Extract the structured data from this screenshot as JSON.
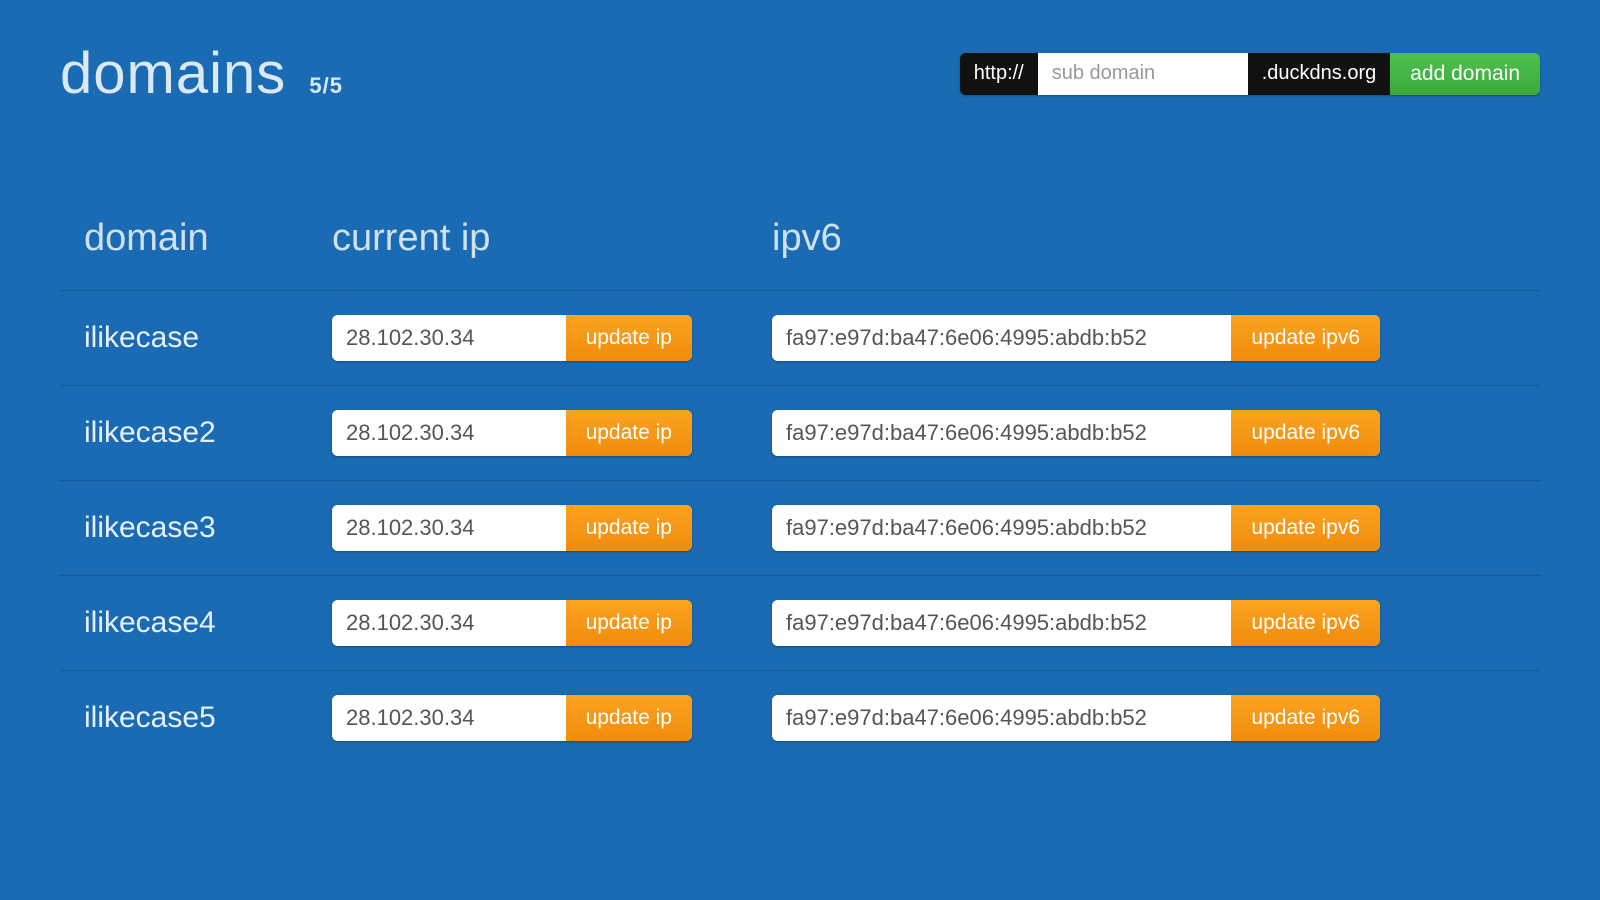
{
  "header": {
    "title": "domains",
    "count": "5/5"
  },
  "add_form": {
    "prefix": "http://",
    "placeholder": "sub domain",
    "suffix": ".duckdns.org",
    "button": "add domain"
  },
  "columns": {
    "domain": "domain",
    "current_ip": "current ip",
    "ipv6": "ipv6"
  },
  "buttons": {
    "update_ip": "update ip",
    "update_ipv6": "update ipv6"
  },
  "rows": [
    {
      "domain": "ilikecase",
      "ip": "28.102.30.34",
      "ipv6": "fa97:e97d:ba47:6e06:4995:abdb:b52"
    },
    {
      "domain": "ilikecase2",
      "ip": "28.102.30.34",
      "ipv6": "fa97:e97d:ba47:6e06:4995:abdb:b52"
    },
    {
      "domain": "ilikecase3",
      "ip": "28.102.30.34",
      "ipv6": "fa97:e97d:ba47:6e06:4995:abdb:b52"
    },
    {
      "domain": "ilikecase4",
      "ip": "28.102.30.34",
      "ipv6": "fa97:e97d:ba47:6e06:4995:abdb:b52"
    },
    {
      "domain": "ilikecase5",
      "ip": "28.102.30.34",
      "ipv6": "fa97:e97d:ba47:6e06:4995:abdb:b52"
    }
  ],
  "colors": {
    "background": "#1a6bb3",
    "button_orange": "#f8981d",
    "button_green": "#43b943",
    "addon_black": "#111111",
    "text_light": "#dbe9f5",
    "row_border": "#155a96"
  }
}
